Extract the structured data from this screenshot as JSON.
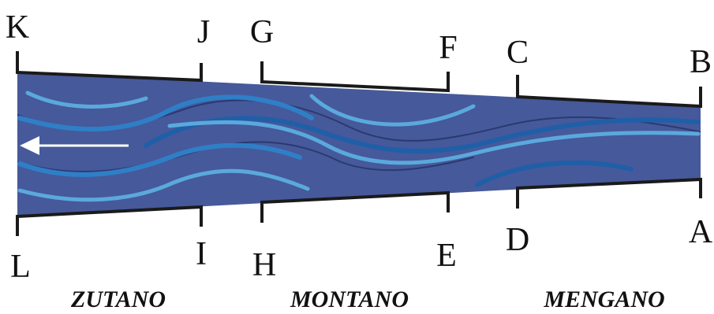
{
  "points": {
    "K": "K",
    "J": "J",
    "G": "G",
    "F": "F",
    "C": "C",
    "B": "B",
    "L": "L",
    "I": "I",
    "H": "H",
    "E": "E",
    "D": "D",
    "A": "A"
  },
  "regions": {
    "left": "ZUTANO",
    "middle": "MONTANO",
    "right": "MENGANO"
  },
  "colors": {
    "channel": "#46599a",
    "stream_light": "#5aa9dd",
    "stream_mid": "#2f7fc7",
    "stream_dark": "#1f5fa8",
    "outline": "#1a1a1a",
    "arrow": "#ffffff"
  },
  "flow_direction": "left"
}
